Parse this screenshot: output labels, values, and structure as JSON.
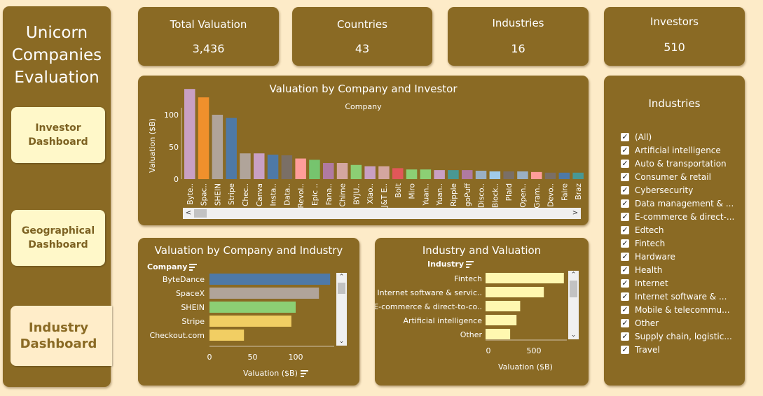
{
  "sidebar": {
    "title": "Unicorn Companies Evaluation",
    "nav": [
      {
        "label": "Investor Dashboard"
      },
      {
        "label": "Geographical Dashboard"
      },
      {
        "label": "Industry Dashboard"
      }
    ]
  },
  "kpis": [
    {
      "title": "Total Valuation",
      "value": "3,436"
    },
    {
      "title": "Countries",
      "value": "43"
    },
    {
      "title": "Industries",
      "value": "16"
    },
    {
      "title": "Investors",
      "value": "510"
    }
  ],
  "colors": {
    "panel": "#8a6a24",
    "background": "#fdebc8",
    "nav_button": "#fff8c9"
  },
  "chart_data": [
    {
      "type": "bar",
      "title": "Valuation by Company and Investor",
      "xlabel": "Company",
      "ylabel": "Valuation ($B)",
      "yticks": [
        0,
        50,
        100
      ],
      "categories": [
        "Byte..",
        "Spac..",
        "SHEIN",
        "Stripe",
        "Chec..",
        "Canva",
        "Insta..",
        "Data..",
        "Revol..",
        "Epic ..",
        "Fana..",
        "Chime",
        "BYJU..",
        "Xiao..",
        "J&T E..",
        "Bolt",
        "Miro",
        "Yuan..",
        "Yuan..",
        "Ripple",
        "goPuff",
        "Disco..",
        "Block..",
        "Plaid",
        "Open..",
        "Gram..",
        "Devo..",
        "Faire",
        "Braz"
      ],
      "values": [
        140,
        127,
        100,
        95,
        40,
        40,
        38,
        37,
        32,
        30,
        25,
        25,
        22,
        20,
        20,
        17,
        15,
        15,
        14,
        14,
        14,
        13,
        12,
        12,
        12,
        11,
        10,
        10,
        10
      ],
      "colors": [
        "#c9a0c4",
        "#f0902c",
        "#b0a49a",
        "#4e79a7",
        "#b0a49a",
        "#c9a0c4",
        "#4e79a7",
        "#7a6f66",
        "#ff9d9a",
        "#76c46e",
        "#b07aa1",
        "#d4a6a0",
        "#8ccf74",
        "#c9a0c4",
        "#d4a6a0",
        "#e15759",
        "#8ccf74",
        "#8ccf74",
        "#c9a0c4",
        "#499894",
        "#b07aa1",
        "#9ab0c4",
        "#a0cbe8",
        "#7a6f66",
        "#9ab0c4",
        "#ff9d9a",
        "#7a6f66",
        "#4e79a7",
        "#499894"
      ]
    },
    {
      "type": "bar",
      "orientation": "horizontal",
      "title": "Valuation by Company and Industry",
      "row_header": "Company",
      "xlabel": "Valuation ($B)",
      "xticks": [
        0,
        50,
        100
      ],
      "categories": [
        "ByteDance",
        "SpaceX",
        "SHEIN",
        "Stripe",
        "Checkout.com"
      ],
      "values": [
        140,
        127,
        100,
        95,
        40
      ],
      "colors": [
        "#4e79a7",
        "#b0a49a",
        "#8ccf74",
        "#f1ce63",
        "#f1ce63"
      ]
    },
    {
      "type": "bar",
      "orientation": "horizontal",
      "title": "Industry and Valuation",
      "row_header": "Industry",
      "xlabel": "Valuation ($B)",
      "xticks": [
        0,
        500
      ],
      "categories": [
        "Fintech",
        "Internet software & servic..",
        "E-commerce & direct-to-co..",
        "Artificial intelligence",
        "Other"
      ],
      "values": [
        860,
        640,
        380,
        340,
        270
      ],
      "colors": [
        "#fff8b0",
        "#fff8b0",
        "#fff8b0",
        "#fff8b0",
        "#fff8b0"
      ]
    }
  ],
  "industries_filter": {
    "title": "Industries",
    "items": [
      "(All)",
      "Artificial intelligence",
      "Auto & transportation",
      "Consumer & retail",
      "Cybersecurity",
      "Data management & ...",
      "E-commerce & direct-...",
      "Edtech",
      "Fintech",
      "Hardware",
      "Health",
      "Internet",
      "Internet software & ...",
      "Mobile & telecommu...",
      "Other",
      "Supply chain, logistic...",
      "Travel"
    ]
  }
}
